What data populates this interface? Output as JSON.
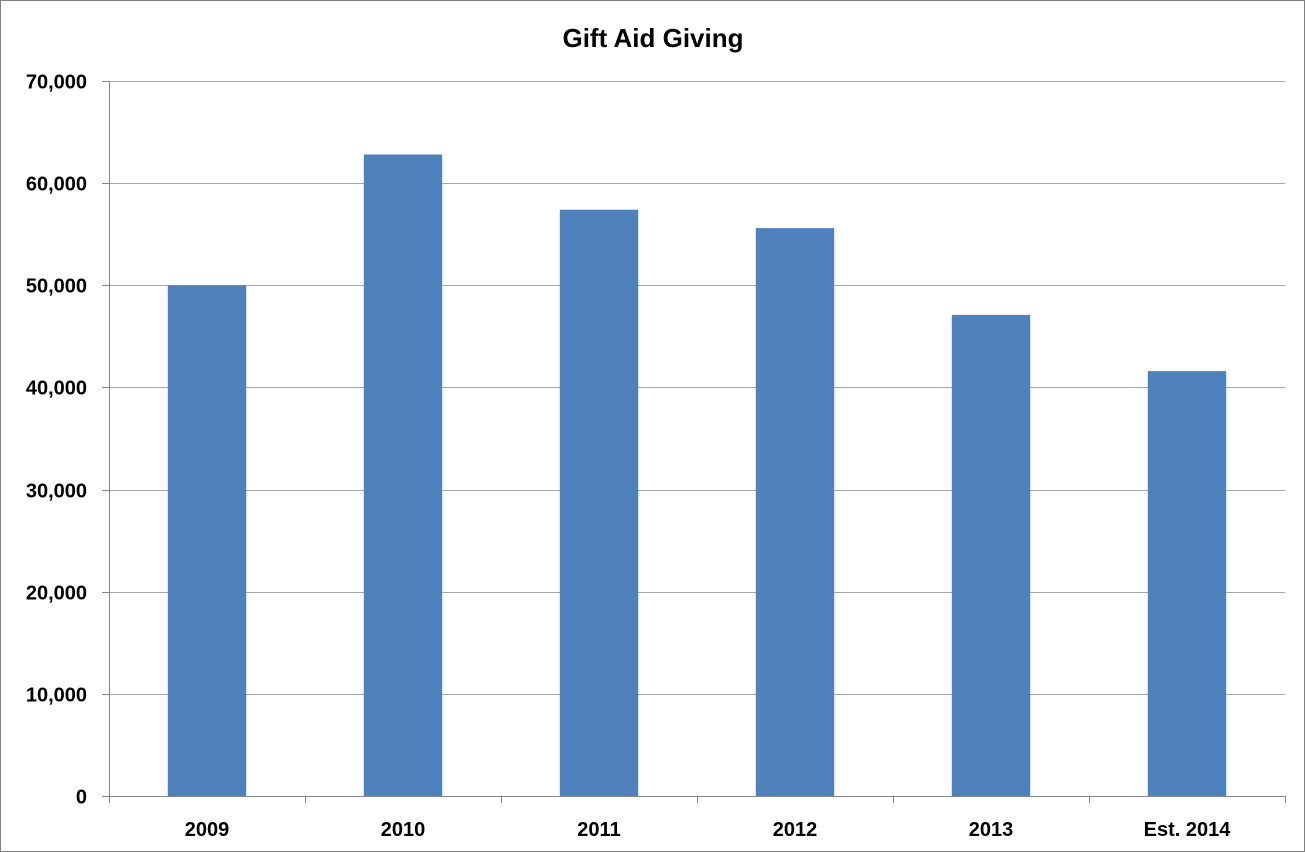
{
  "chart_data": {
    "type": "bar",
    "title": "Gift Aid Giving",
    "xlabel": "",
    "ylabel": "",
    "categories": [
      "2009",
      "2010",
      "2011",
      "2012",
      "2013",
      "Est. 2014"
    ],
    "values": [
      50000,
      62800,
      57400,
      55600,
      47100,
      41600
    ],
    "ylim": [
      0,
      70000
    ],
    "y_ticks": [
      0,
      10000,
      20000,
      30000,
      40000,
      50000,
      60000,
      70000
    ],
    "y_tick_labels": [
      "0",
      "10,000",
      "20,000",
      "30,000",
      "40,000",
      "50,000",
      "60,000",
      "70,000"
    ],
    "grid": true,
    "legend": "none",
    "bar_color": "#4f81bd",
    "gridline_color": "#a6a6a6"
  }
}
